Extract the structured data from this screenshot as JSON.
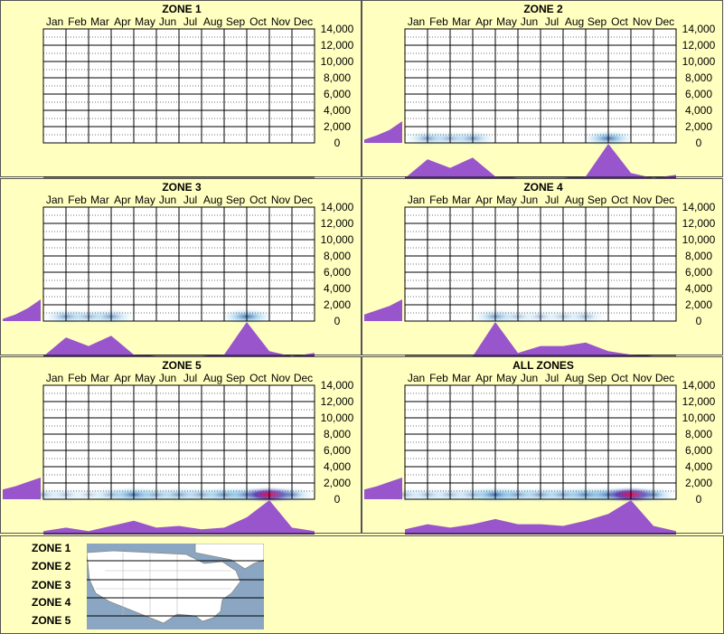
{
  "months": [
    "Jan",
    "Feb",
    "Mar",
    "Apr",
    "May",
    "Jun",
    "Jul",
    "Aug",
    "Sep",
    "Oct",
    "Nov",
    "Dec"
  ],
  "y_ticks": [
    "14,000",
    "12,000",
    "10,000",
    "8,000",
    "6,000",
    "4,000",
    "2,000",
    "0"
  ],
  "legend_zones": [
    "ZONE 1",
    "ZONE 2",
    "ZONE 3",
    "ZONE 4",
    "ZONE 5"
  ],
  "colors": {
    "background": "#ffffc0",
    "area": "#9955cc",
    "grid": "#000000",
    "map_water": "#8aa6c2",
    "map_land": "#ffffff",
    "heat": "#1b6fb0"
  },
  "chart_data": [
    {
      "type": "area",
      "title": "ZONE 1",
      "ylim": [
        0,
        14000
      ],
      "ylabel": "",
      "xlabel": "",
      "grid": true,
      "x": [
        "Jan",
        "Feb",
        "Mar",
        "Apr",
        "May",
        "Jun",
        "Jul",
        "Aug",
        "Sep",
        "Oct",
        "Nov",
        "Dec"
      ],
      "elevation_profile": [
        0,
        0,
        0,
        0,
        0,
        0,
        0,
        0,
        0,
        0,
        0,
        0,
        0
      ],
      "monthly_density": [
        0,
        0,
        0,
        0,
        0,
        0,
        0,
        0,
        0,
        0,
        0,
        0,
        0
      ],
      "heat_band": [
        0,
        0,
        0,
        0,
        0,
        0,
        0,
        0,
        0,
        0,
        0,
        0,
        0
      ]
    },
    {
      "type": "area",
      "title": "ZONE 2",
      "ylim": [
        0,
        14000
      ],
      "ylabel": "",
      "xlabel": "",
      "grid": true,
      "x": [
        "Jan",
        "Feb",
        "Mar",
        "Apr",
        "May",
        "Jun",
        "Jul",
        "Aug",
        "Sep",
        "Oct",
        "Nov",
        "Dec"
      ],
      "elevation_profile": [
        0.15,
        0.35,
        0.6,
        1.0
      ],
      "monthly_density": [
        0,
        0.55,
        0.3,
        0.6,
        0.05,
        0,
        0,
        0,
        0.05,
        1.0,
        0.15,
        0,
        0.1
      ],
      "heat_band": [
        0,
        0.35,
        0.25,
        0.35,
        0,
        0,
        0,
        0,
        0,
        0.55,
        0,
        0,
        0
      ]
    },
    {
      "type": "area",
      "title": "ZONE 3",
      "ylim": [
        0,
        14000
      ],
      "ylabel": "",
      "xlabel": "",
      "grid": true,
      "x": [
        "Jan",
        "Feb",
        "Mar",
        "Apr",
        "May",
        "Jun",
        "Jul",
        "Aug",
        "Sep",
        "Oct",
        "Nov",
        "Dec"
      ],
      "elevation_profile": [
        0.1,
        0.3,
        0.6,
        1.0
      ],
      "monthly_density": [
        0,
        0.55,
        0.3,
        0.6,
        0.05,
        0,
        0,
        0,
        0.05,
        1.0,
        0.15,
        0,
        0.1
      ],
      "heat_band": [
        0,
        0.35,
        0.25,
        0.35,
        0,
        0,
        0,
        0,
        0,
        0.55,
        0,
        0,
        0
      ]
    },
    {
      "type": "area",
      "title": "ZONE 4",
      "ylim": [
        0,
        14000
      ],
      "ylabel": "",
      "xlabel": "",
      "grid": true,
      "x": [
        "Jan",
        "Feb",
        "Mar",
        "Apr",
        "May",
        "Jun",
        "Jul",
        "Aug",
        "Sep",
        "Oct",
        "Nov",
        "Dec"
      ],
      "elevation_profile": [
        0.3,
        0.5,
        0.7,
        1.0
      ],
      "monthly_density": [
        0,
        0,
        0,
        0,
        1.0,
        0.1,
        0.3,
        0.3,
        0.4,
        0.15,
        0.05,
        0,
        0
      ],
      "heat_band": [
        0,
        0,
        0,
        0,
        0.35,
        0.15,
        0.15,
        0.15,
        0.2,
        0,
        0,
        0,
        0
      ]
    },
    {
      "type": "area",
      "title": "ZONE 5",
      "ylim": [
        0,
        14000
      ],
      "ylabel": "",
      "xlabel": "",
      "grid": true,
      "x": [
        "Jan",
        "Feb",
        "Mar",
        "Apr",
        "May",
        "Jun",
        "Jul",
        "Aug",
        "Sep",
        "Oct",
        "Nov",
        "Dec"
      ],
      "elevation_profile": [
        0.45,
        0.6,
        0.8,
        1.0
      ],
      "monthly_density": [
        0.1,
        0.2,
        0.1,
        0.25,
        0.4,
        0.2,
        0.25,
        0.15,
        0.2,
        0.5,
        1.0,
        0.2,
        0.1
      ],
      "heat_band": [
        0.2,
        0.15,
        0.1,
        0.25,
        0.55,
        0.3,
        0.35,
        0.3,
        0.45,
        0.5,
        1.0,
        0.35,
        0
      ]
    },
    {
      "type": "area",
      "title": "ALL ZONES",
      "ylim": [
        0,
        14000
      ],
      "ylabel": "",
      "xlabel": "",
      "grid": true,
      "x": [
        "Jan",
        "Feb",
        "Mar",
        "Apr",
        "May",
        "Jun",
        "Jul",
        "Aug",
        "Sep",
        "Oct",
        "Nov",
        "Dec"
      ],
      "elevation_profile": [
        0.45,
        0.6,
        0.8,
        1.0
      ],
      "monthly_density": [
        0.15,
        0.3,
        0.2,
        0.3,
        0.45,
        0.3,
        0.3,
        0.25,
        0.4,
        0.6,
        1.0,
        0.25,
        0.1
      ],
      "heat_band": [
        0.2,
        0.2,
        0.2,
        0.25,
        0.6,
        0.35,
        0.35,
        0.35,
        0.5,
        0.55,
        1.0,
        0.35,
        0
      ]
    }
  ]
}
